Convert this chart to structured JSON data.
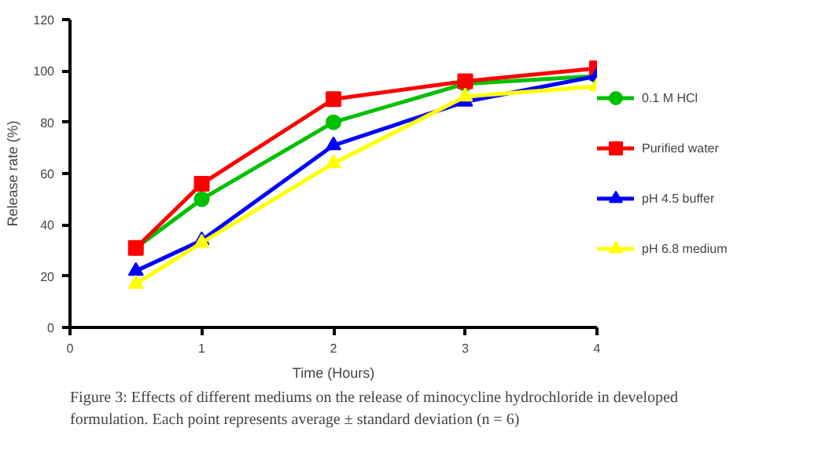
{
  "chart_data": {
    "type": "line",
    "xlabel": "Time (Hours)",
    "ylabel": "Release rate (%)",
    "x": [
      0.5,
      1,
      2,
      3,
      4
    ],
    "series": [
      {
        "name": "0.1 M HCl",
        "color": "#00c000",
        "marker": "circle",
        "values": [
          31,
          50,
          80,
          95,
          98
        ]
      },
      {
        "name": "Purified water",
        "color": "#ff0000",
        "marker": "square",
        "values": [
          31,
          56,
          89,
          96,
          101
        ]
      },
      {
        "name": "pH 4.5 buffer",
        "color": "#0000ff",
        "marker": "triangle",
        "values": [
          22,
          34,
          71,
          88,
          98
        ]
      },
      {
        "name": "pH 6.8 medium",
        "color": "#ffff00",
        "marker": "triangle",
        "values": [
          17,
          33,
          64,
          90,
          94
        ]
      }
    ],
    "xlim": [
      0,
      4
    ],
    "ylim": [
      0,
      120
    ],
    "xticks": [
      0,
      1,
      2,
      3,
      4
    ],
    "yticks": [
      0,
      20,
      40,
      60,
      80,
      100,
      120
    ],
    "grid": false,
    "legend": "right",
    "line_style": "solid",
    "annotations": [
      "Figure 3: Effects of different mediums on the release of minocycline hydrochloride in developed formulation. Each point represents average ± standard deviation (n = 6)"
    ]
  }
}
